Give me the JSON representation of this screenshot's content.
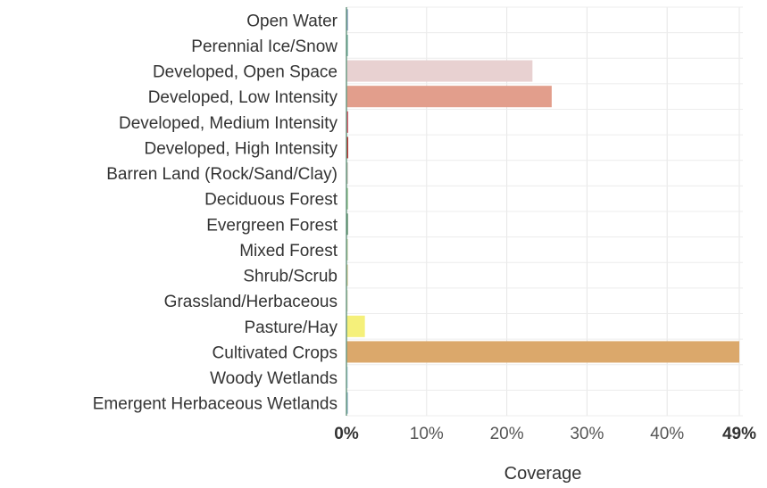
{
  "chart_data": {
    "type": "bar",
    "orientation": "horizontal",
    "categories": [
      "Open Water",
      "Perennial Ice/Snow",
      "Developed, Open Space",
      "Developed, Low Intensity",
      "Developed, Medium Intensity",
      "Developed, High Intensity",
      "Barren Land (Rock/Sand/Clay)",
      "Deciduous Forest",
      "Evergreen Forest",
      "Mixed Forest",
      "Shrub/Scrub",
      "Grassland/Herbaceous",
      "Pasture/Hay",
      "Cultivated Crops",
      "Woody Wetlands",
      "Emergent Herbaceous Wetlands"
    ],
    "values": [
      0,
      0,
      23.2,
      25.6,
      0.2,
      0.2,
      0,
      0,
      0,
      0,
      0,
      0,
      2.3,
      49,
      0,
      0
    ],
    "colors": [
      "#5475a8",
      "#4d9a8a",
      "#e8d1d1",
      "#e29e8c",
      "#d2354a",
      "#ab0000",
      "#b3ac9f",
      "#68ab5f",
      "#1c5f2c",
      "#b5c58f",
      "#ccb879",
      "#dfdfc2",
      "#f5f07a",
      "#dba86b",
      "#b8d9eb",
      "#6c9fb8"
    ],
    "xlim": [
      0,
      49
    ],
    "x_ticks": [
      {
        "value": 0,
        "label": "0%",
        "bold": true
      },
      {
        "value": 10,
        "label": "10%",
        "bold": false
      },
      {
        "value": 20,
        "label": "20%",
        "bold": false
      },
      {
        "value": 30,
        "label": "30%",
        "bold": false
      },
      {
        "value": 40,
        "label": "40%",
        "bold": false
      },
      {
        "value": 49,
        "label": "49%",
        "bold": true
      }
    ],
    "xlabel": "Coverage",
    "grid": true
  }
}
